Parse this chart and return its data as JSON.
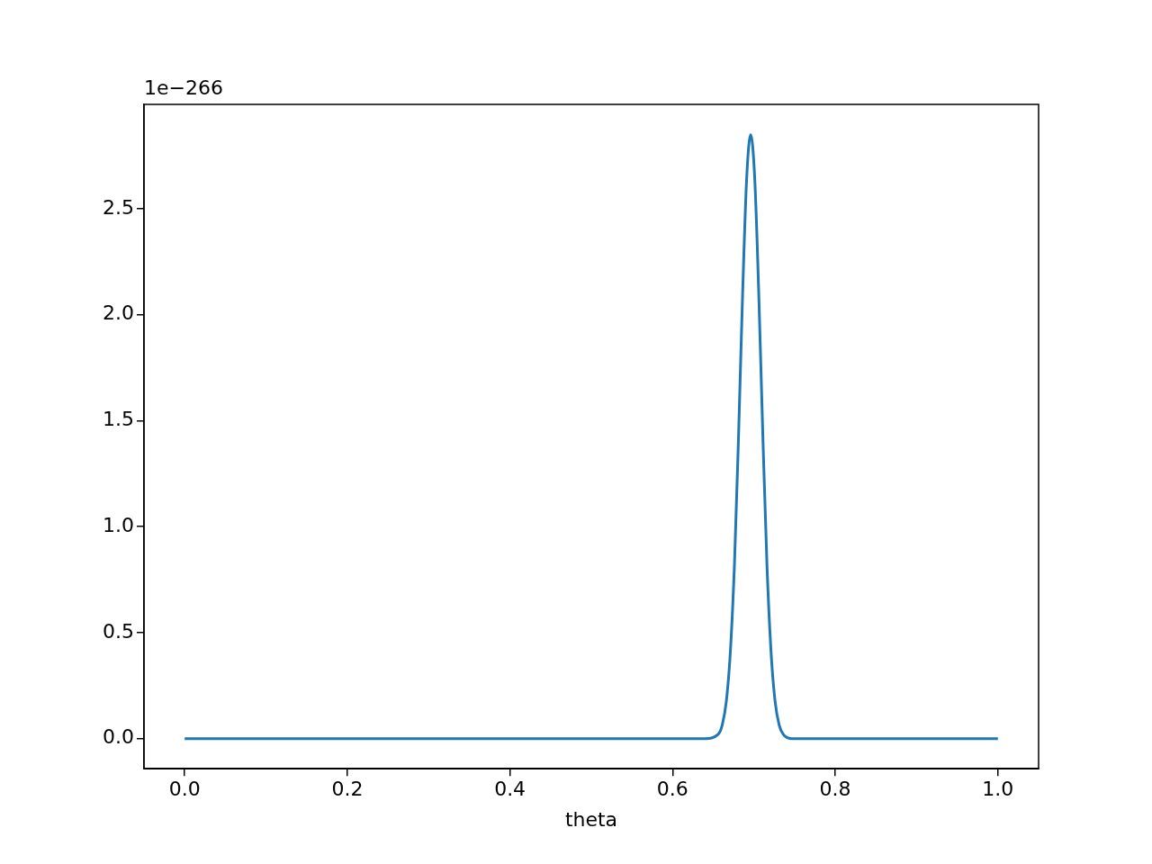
{
  "chart_data": {
    "type": "line",
    "xlabel": "theta",
    "annotations": [
      "1e−266"
    ],
    "series": [
      {
        "color": "#1f77b4",
        "x": [
          0,
          0.5,
          0.64,
          0.656,
          0.661,
          0.666,
          0.671,
          0.676,
          0.681,
          0.686,
          0.691,
          0.696,
          0.701,
          0.706,
          0.711,
          0.716,
          0.721,
          0.726,
          0.731,
          0.736,
          0.746,
          0.76,
          1.0
        ],
        "values": [
          0,
          0,
          0,
          0.02,
          0.064,
          0.175,
          0.41,
          0.82,
          1.42,
          2.09,
          2.64,
          2.85,
          2.64,
          2.09,
          1.42,
          0.82,
          0.41,
          0.175,
          0.064,
          0.02,
          0,
          0,
          0
        ]
      }
    ],
    "xlim": [
      -0.05,
      1.05
    ],
    "xticks": [
      {
        "value": 0,
        "label": "0.0"
      },
      {
        "value": 0.2,
        "label": "0.2"
      },
      {
        "value": 0.4,
        "label": "0.4"
      },
      {
        "value": 0.6,
        "label": "0.6"
      },
      {
        "value": 0.8,
        "label": "0.8"
      },
      {
        "value": 1,
        "label": "1.0"
      }
    ],
    "ylim": [
      -0.1425,
      2.9925
    ],
    "yticks": [
      {
        "value": 0,
        "label": "0.0"
      },
      {
        "value": 0.5,
        "label": "0.5"
      },
      {
        "value": 1,
        "label": "1.0"
      },
      {
        "value": 1.5,
        "label": "1.5"
      },
      {
        "value": 2,
        "label": "2.0"
      },
      {
        "value": 2.5,
        "label": "2.5"
      }
    ],
    "grid": false,
    "legend": false,
    "marker": "none",
    "line_style": "solid"
  }
}
